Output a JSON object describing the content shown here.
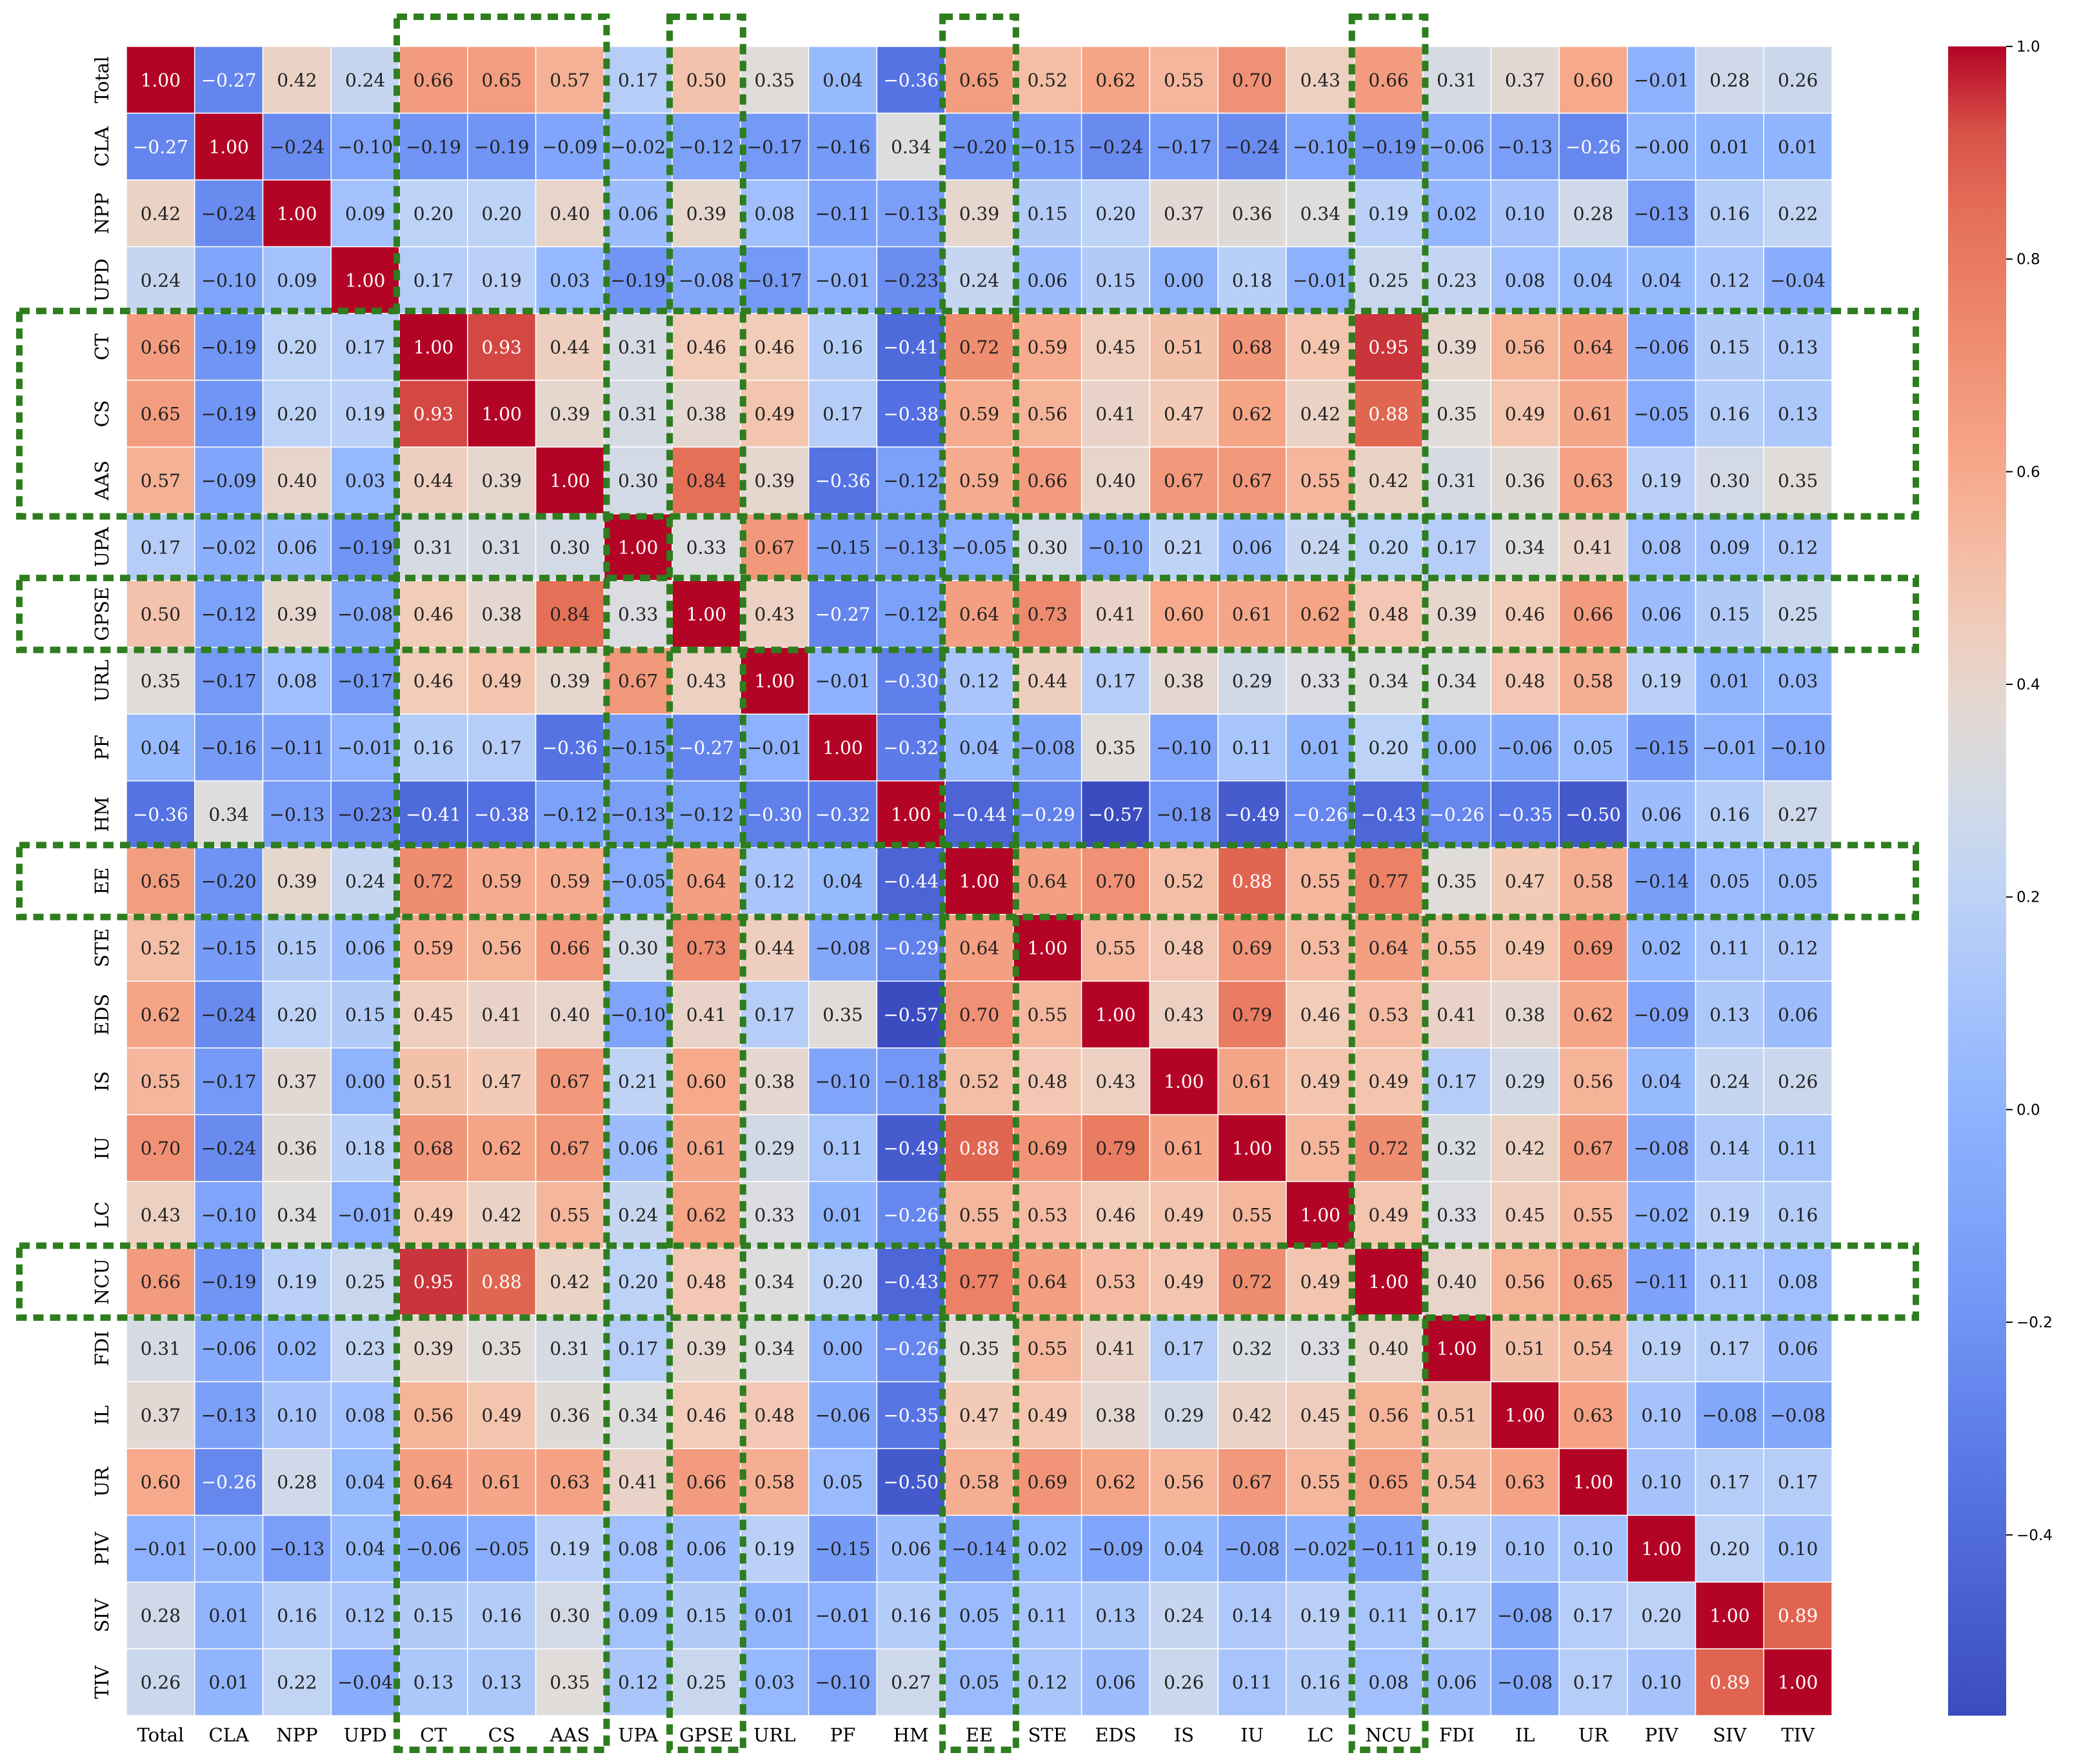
{
  "chart_data": {
    "type": "heatmap",
    "title": "",
    "xlabel": "",
    "ylabel": "",
    "colormap": "coolwarm",
    "vmin": -0.57,
    "vmax": 1.0,
    "labels": [
      "Total",
      "CLA",
      "NPP",
      "UPD",
      "CT",
      "CS",
      "AAS",
      "UPA",
      "GPSE",
      "URL",
      "PF",
      "HM",
      "EE",
      "STE",
      "EDS",
      "IS",
      "IU",
      "LC",
      "NCU",
      "FDI",
      "IL",
      "UR",
      "PIV",
      "SIV",
      "TIV"
    ],
    "matrix": [
      [
        1.0,
        -0.27,
        0.42,
        0.24,
        0.66,
        0.65,
        0.57,
        0.17,
        0.5,
        0.35,
        0.04,
        -0.36,
        0.65,
        0.52,
        0.62,
        0.55,
        0.7,
        0.43,
        0.66,
        0.31,
        0.37,
        0.6,
        -0.01,
        0.28,
        0.26
      ],
      [
        -0.27,
        1.0,
        -0.24,
        -0.1,
        -0.19,
        -0.19,
        -0.09,
        -0.02,
        -0.12,
        -0.17,
        -0.16,
        0.34,
        -0.2,
        -0.15,
        -0.24,
        -0.17,
        -0.24,
        -0.1,
        -0.19,
        -0.06,
        -0.13,
        -0.26,
        -0.0,
        0.01,
        0.01
      ],
      [
        0.42,
        -0.24,
        1.0,
        0.09,
        0.2,
        0.2,
        0.4,
        0.06,
        0.39,
        0.08,
        -0.11,
        -0.13,
        0.39,
        0.15,
        0.2,
        0.37,
        0.36,
        0.34,
        0.19,
        0.02,
        0.1,
        0.28,
        -0.13,
        0.16,
        0.22
      ],
      [
        0.24,
        -0.1,
        0.09,
        1.0,
        0.17,
        0.19,
        0.03,
        -0.19,
        -0.08,
        -0.17,
        -0.01,
        -0.23,
        0.24,
        0.06,
        0.15,
        0.0,
        0.18,
        -0.01,
        0.25,
        0.23,
        0.08,
        0.04,
        0.04,
        0.12,
        -0.04
      ],
      [
        0.66,
        -0.19,
        0.2,
        0.17,
        1.0,
        0.93,
        0.44,
        0.31,
        0.46,
        0.46,
        0.16,
        -0.41,
        0.72,
        0.59,
        0.45,
        0.51,
        0.68,
        0.49,
        0.95,
        0.39,
        0.56,
        0.64,
        -0.06,
        0.15,
        0.13
      ],
      [
        0.65,
        -0.19,
        0.2,
        0.19,
        0.93,
        1.0,
        0.39,
        0.31,
        0.38,
        0.49,
        0.17,
        -0.38,
        0.59,
        0.56,
        0.41,
        0.47,
        0.62,
        0.42,
        0.88,
        0.35,
        0.49,
        0.61,
        -0.05,
        0.16,
        0.13
      ],
      [
        0.57,
        -0.09,
        0.4,
        0.03,
        0.44,
        0.39,
        1.0,
        0.3,
        0.84,
        0.39,
        -0.36,
        -0.12,
        0.59,
        0.66,
        0.4,
        0.67,
        0.67,
        0.55,
        0.42,
        0.31,
        0.36,
        0.63,
        0.19,
        0.3,
        0.35
      ],
      [
        0.17,
        -0.02,
        0.06,
        -0.19,
        0.31,
        0.31,
        0.3,
        1.0,
        0.33,
        0.67,
        -0.15,
        -0.13,
        -0.05,
        0.3,
        -0.1,
        0.21,
        0.06,
        0.24,
        0.2,
        0.17,
        0.34,
        0.41,
        0.08,
        0.09,
        0.12
      ],
      [
        0.5,
        -0.12,
        0.39,
        -0.08,
        0.46,
        0.38,
        0.84,
        0.33,
        1.0,
        0.43,
        -0.27,
        -0.12,
        0.64,
        0.73,
        0.41,
        0.6,
        0.61,
        0.62,
        0.48,
        0.39,
        0.46,
        0.66,
        0.06,
        0.15,
        0.25
      ],
      [
        0.35,
        -0.17,
        0.08,
        -0.17,
        0.46,
        0.49,
        0.39,
        0.67,
        0.43,
        1.0,
        -0.01,
        -0.3,
        0.12,
        0.44,
        0.17,
        0.38,
        0.29,
        0.33,
        0.34,
        0.34,
        0.48,
        0.58,
        0.19,
        0.01,
        0.03
      ],
      [
        0.04,
        -0.16,
        -0.11,
        -0.01,
        0.16,
        0.17,
        -0.36,
        -0.15,
        -0.27,
        -0.01,
        1.0,
        -0.32,
        0.04,
        -0.08,
        0.35,
        -0.1,
        0.11,
        0.01,
        0.2,
        0.0,
        -0.06,
        0.05,
        -0.15,
        -0.01,
        -0.1
      ],
      [
        -0.36,
        0.34,
        -0.13,
        -0.23,
        -0.41,
        -0.38,
        -0.12,
        -0.13,
        -0.12,
        -0.3,
        -0.32,
        1.0,
        -0.44,
        -0.29,
        -0.57,
        -0.18,
        -0.49,
        -0.26,
        -0.43,
        -0.26,
        -0.35,
        -0.5,
        0.06,
        0.16,
        0.27
      ],
      [
        0.65,
        -0.2,
        0.39,
        0.24,
        0.72,
        0.59,
        0.59,
        -0.05,
        0.64,
        0.12,
        0.04,
        -0.44,
        1.0,
        0.64,
        0.7,
        0.52,
        0.88,
        0.55,
        0.77,
        0.35,
        0.47,
        0.58,
        -0.14,
        0.05,
        0.05
      ],
      [
        0.52,
        -0.15,
        0.15,
        0.06,
        0.59,
        0.56,
        0.66,
        0.3,
        0.73,
        0.44,
        -0.08,
        -0.29,
        0.64,
        1.0,
        0.55,
        0.48,
        0.69,
        0.53,
        0.64,
        0.55,
        0.49,
        0.69,
        0.02,
        0.11,
        0.12
      ],
      [
        0.62,
        -0.24,
        0.2,
        0.15,
        0.45,
        0.41,
        0.4,
        -0.1,
        0.41,
        0.17,
        0.35,
        -0.57,
        0.7,
        0.55,
        1.0,
        0.43,
        0.79,
        0.46,
        0.53,
        0.41,
        0.38,
        0.62,
        -0.09,
        0.13,
        0.06
      ],
      [
        0.55,
        -0.17,
        0.37,
        0.0,
        0.51,
        0.47,
        0.67,
        0.21,
        0.6,
        0.38,
        -0.1,
        -0.18,
        0.52,
        0.48,
        0.43,
        1.0,
        0.61,
        0.49,
        0.49,
        0.17,
        0.29,
        0.56,
        0.04,
        0.24,
        0.26
      ],
      [
        0.7,
        -0.24,
        0.36,
        0.18,
        0.68,
        0.62,
        0.67,
        0.06,
        0.61,
        0.29,
        0.11,
        -0.49,
        0.88,
        0.69,
        0.79,
        0.61,
        1.0,
        0.55,
        0.72,
        0.32,
        0.42,
        0.67,
        -0.08,
        0.14,
        0.11
      ],
      [
        0.43,
        -0.1,
        0.34,
        -0.01,
        0.49,
        0.42,
        0.55,
        0.24,
        0.62,
        0.33,
        0.01,
        -0.26,
        0.55,
        0.53,
        0.46,
        0.49,
        0.55,
        1.0,
        0.49,
        0.33,
        0.45,
        0.55,
        -0.02,
        0.19,
        0.16
      ],
      [
        0.66,
        -0.19,
        0.19,
        0.25,
        0.95,
        0.88,
        0.42,
        0.2,
        0.48,
        0.34,
        0.2,
        -0.43,
        0.77,
        0.64,
        0.53,
        0.49,
        0.72,
        0.49,
        1.0,
        0.4,
        0.56,
        0.65,
        -0.11,
        0.11,
        0.08
      ],
      [
        0.31,
        -0.06,
        0.02,
        0.23,
        0.39,
        0.35,
        0.31,
        0.17,
        0.39,
        0.34,
        0.0,
        -0.26,
        0.35,
        0.55,
        0.41,
        0.17,
        0.32,
        0.33,
        0.4,
        1.0,
        0.51,
        0.54,
        0.19,
        0.17,
        0.06
      ],
      [
        0.37,
        -0.13,
        0.1,
        0.08,
        0.56,
        0.49,
        0.36,
        0.34,
        0.46,
        0.48,
        -0.06,
        -0.35,
        0.47,
        0.49,
        0.38,
        0.29,
        0.42,
        0.45,
        0.56,
        0.51,
        1.0,
        0.63,
        0.1,
        -0.08,
        -0.08
      ],
      [
        0.6,
        -0.26,
        0.28,
        0.04,
        0.64,
        0.61,
        0.63,
        0.41,
        0.66,
        0.58,
        0.05,
        -0.5,
        0.58,
        0.69,
        0.62,
        0.56,
        0.67,
        0.55,
        0.65,
        0.54,
        0.63,
        1.0,
        0.1,
        0.17,
        0.17
      ],
      [
        -0.01,
        -0.0,
        -0.13,
        0.04,
        -0.06,
        -0.05,
        0.19,
        0.08,
        0.06,
        0.19,
        -0.15,
        0.06,
        -0.14,
        0.02,
        -0.09,
        0.04,
        -0.08,
        -0.02,
        -0.11,
        0.19,
        0.1,
        0.1,
        1.0,
        0.2,
        0.1
      ],
      [
        0.28,
        0.01,
        0.16,
        0.12,
        0.15,
        0.16,
        0.3,
        0.09,
        0.15,
        0.01,
        -0.01,
        0.16,
        0.05,
        0.11,
        0.13,
        0.24,
        0.14,
        0.19,
        0.11,
        0.17,
        -0.08,
        0.17,
        0.2,
        1.0,
        0.89
      ],
      [
        0.26,
        0.01,
        0.22,
        -0.04,
        0.13,
        0.13,
        0.35,
        0.12,
        0.25,
        0.03,
        -0.1,
        0.27,
        0.05,
        0.12,
        0.06,
        0.26,
        0.11,
        0.16,
        0.08,
        0.06,
        -0.08,
        0.17,
        0.1,
        0.89,
        1.0
      ]
    ],
    "colorbar": {
      "ticks": [
        -0.4,
        -0.2,
        0.0,
        0.2,
        0.4,
        0.6,
        0.8,
        1.0
      ],
      "tick_labels": [
        "−0.4",
        "−0.2",
        "0.0",
        "0.2",
        "0.4",
        "0.6",
        "0.8",
        "1.0"
      ]
    },
    "highlight_columns": [
      [
        "CT",
        "AAS"
      ],
      [
        "GPSE",
        "GPSE"
      ],
      [
        "EE",
        "EE"
      ],
      [
        "NCU",
        "NCU"
      ]
    ],
    "highlight_rows": [
      [
        "CT",
        "AAS"
      ],
      [
        "GPSE",
        "GPSE"
      ],
      [
        "EE",
        "EE"
      ],
      [
        "NCU",
        "NCU"
      ]
    ],
    "highlight_color": "#2e7d1e"
  }
}
